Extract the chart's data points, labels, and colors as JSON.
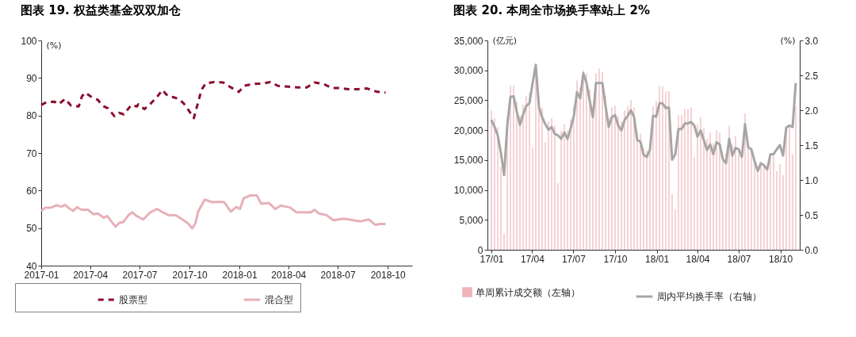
{
  "chart_data": [
    {
      "type": "line",
      "title": "图表 19. 权益类基金双双加仓",
      "ylabel": "(%)",
      "xlim": [
        "2017-01-01",
        "2018-11-15"
      ],
      "xticks": [
        "2017-01",
        "2017-04",
        "2017-07",
        "2017-10",
        "2018-01",
        "2018-04",
        "2018-07",
        "2018-10"
      ],
      "ylim": [
        40,
        100
      ],
      "yticks": [
        40,
        50,
        60,
        70,
        80,
        90,
        100
      ],
      "grid": false,
      "legend": "bottom",
      "series": [
        {
          "name": "股票型",
          "color": "#8b0d2e",
          "line_style": "dashed",
          "x": [
            "2017-01-01",
            "2017-01-10",
            "2017-01-25",
            "2017-02-02",
            "2017-02-14",
            "2017-02-25",
            "2017-03-11",
            "2017-03-17",
            "2017-03-23",
            "2017-04-02",
            "2017-04-15",
            "2017-04-24",
            "2017-05-04",
            "2017-05-16",
            "2017-05-25",
            "2017-06-02",
            "2017-06-16",
            "2017-06-26",
            "2017-06-29",
            "2017-07-10",
            "2017-07-21",
            "2017-08-01",
            "2017-08-12",
            "2017-08-22",
            "2017-09-01",
            "2017-09-11",
            "2017-09-20",
            "2017-09-29",
            "2017-10-09",
            "2017-10-16",
            "2017-10-23",
            "2017-10-31",
            "2017-11-15",
            "2017-12-02",
            "2017-12-16",
            "2017-12-31",
            "2018-01-09",
            "2018-01-26",
            "2018-02-12",
            "2018-02-27",
            "2018-03-13",
            "2018-04-01",
            "2018-04-18",
            "2018-05-05",
            "2018-05-19",
            "2018-06-05",
            "2018-06-20",
            "2018-07-04",
            "2018-07-21",
            "2018-08-07",
            "2018-08-24",
            "2018-09-12",
            "2018-09-27"
          ],
          "values": [
            82.8,
            83.5,
            83.7,
            83.0,
            84.4,
            82.6,
            82.4,
            85.1,
            86.1,
            85.1,
            84.2,
            82.6,
            81.9,
            79.8,
            80.7,
            80.3,
            82.8,
            82.4,
            83.0,
            81.7,
            83.1,
            84.7,
            86.8,
            85.2,
            84.9,
            84.4,
            83.3,
            81.5,
            79.3,
            83.0,
            86.8,
            88.6,
            88.9,
            88.8,
            87.5,
            86.3,
            87.9,
            88.4,
            88.5,
            88.9,
            87.9,
            87.7,
            87.5,
            87.5,
            88.8,
            88.4,
            87.3,
            87.3,
            87.0,
            87.0,
            87.2,
            86.3,
            86.1
          ]
        },
        {
          "name": "混合型",
          "color": "#e8b0b8",
          "line_style": "solid",
          "x": [
            "2017-01-01",
            "2017-01-08",
            "2017-01-20",
            "2017-01-29",
            "2017-02-07",
            "2017-02-14",
            "2017-02-23",
            "2017-03-01",
            "2017-03-08",
            "2017-03-16",
            "2017-03-28",
            "2017-04-07",
            "2017-04-15",
            "2017-04-26",
            "2017-05-03",
            "2017-05-11",
            "2017-05-18",
            "2017-05-25",
            "2017-06-01",
            "2017-06-11",
            "2017-06-18",
            "2017-06-26",
            "2017-07-08",
            "2017-07-20",
            "2017-08-02",
            "2017-08-13",
            "2017-08-25",
            "2017-09-06",
            "2017-09-18",
            "2017-09-28",
            "2017-10-06",
            "2017-10-12",
            "2017-10-17",
            "2017-10-29",
            "2017-11-12",
            "2017-11-25",
            "2017-12-04",
            "2017-12-16",
            "2017-12-26",
            "2018-01-02",
            "2018-01-09",
            "2018-01-21",
            "2018-02-02",
            "2018-02-10",
            "2018-02-24",
            "2018-03-08",
            "2018-03-18",
            "2018-04-04",
            "2018-04-16",
            "2018-05-13",
            "2018-05-19",
            "2018-05-27",
            "2018-06-10",
            "2018-06-23",
            "2018-07-12",
            "2018-08-12",
            "2018-08-27",
            "2018-09-08",
            "2018-09-17",
            "2018-09-27"
          ],
          "values": [
            54.6,
            55.4,
            55.5,
            56.1,
            55.7,
            56.2,
            55.1,
            54.6,
            55.6,
            54.9,
            54.9,
            53.7,
            53.9,
            52.8,
            53.2,
            51.6,
            50.4,
            51.4,
            51.6,
            53.5,
            54.2,
            53.2,
            52.3,
            54.1,
            55.1,
            54.2,
            53.4,
            53.4,
            52.3,
            51.3,
            49.9,
            51.3,
            54.4,
            57.6,
            56.9,
            57.0,
            56.9,
            54.4,
            55.6,
            55.1,
            58.0,
            58.7,
            58.7,
            56.5,
            56.7,
            55.1,
            56.0,
            55.5,
            54.2,
            54.2,
            54.9,
            53.9,
            53.5,
            52.1,
            52.5,
            51.8,
            52.3,
            50.9,
            51.1,
            51.1
          ]
        }
      ]
    },
    {
      "type": "bar",
      "title": "图表 20. 本周全市场换手率站上 2%",
      "ylabel": "(亿元)",
      "y2label": "(%)",
      "x": [
        "2017-01-06",
        "2017-01-13",
        "2017-01-20",
        "2017-01-27",
        "2017-02-03",
        "2017-02-10",
        "2017-02-17",
        "2017-02-24",
        "2017-03-03",
        "2017-03-10",
        "2017-03-17",
        "2017-03-24",
        "2017-03-31",
        "2017-04-07",
        "2017-04-14",
        "2017-04-21",
        "2017-04-28",
        "2017-05-05",
        "2017-05-12",
        "2017-05-19",
        "2017-05-26",
        "2017-06-02",
        "2017-06-09",
        "2017-06-16",
        "2017-06-23",
        "2017-06-30",
        "2017-07-07",
        "2017-07-14",
        "2017-07-21",
        "2017-07-28",
        "2017-08-04",
        "2017-08-11",
        "2017-08-18",
        "2017-08-25",
        "2017-09-01",
        "2017-09-08",
        "2017-09-15",
        "2017-09-22",
        "2017-09-29",
        "2017-10-06",
        "2017-10-13",
        "2017-10-20",
        "2017-10-27",
        "2017-11-03",
        "2017-11-10",
        "2017-11-17",
        "2017-11-24",
        "2017-12-01",
        "2017-12-08",
        "2017-12-15",
        "2017-12-22",
        "2017-12-29",
        "2018-01-05",
        "2018-01-12",
        "2018-01-19",
        "2018-01-26",
        "2018-02-02",
        "2018-02-09",
        "2018-02-16",
        "2018-02-23",
        "2018-03-02",
        "2018-03-09",
        "2018-03-16",
        "2018-03-23",
        "2018-03-30",
        "2018-04-06",
        "2018-04-13",
        "2018-04-20",
        "2018-04-27",
        "2018-05-04",
        "2018-05-11",
        "2018-05-18",
        "2018-05-25",
        "2018-06-01",
        "2018-06-08",
        "2018-06-15",
        "2018-06-22",
        "2018-06-29",
        "2018-07-06",
        "2018-07-13",
        "2018-07-20",
        "2018-07-27",
        "2018-08-03",
        "2018-08-10",
        "2018-08-17",
        "2018-08-24",
        "2018-08-31",
        "2018-09-07",
        "2018-09-14",
        "2018-09-21",
        "2018-09-28",
        "2018-10-05",
        "2018-10-12",
        "2018-10-19",
        "2018-10-26",
        "2018-11-02",
        "2018-11-09"
      ],
      "xlim": [
        "2017-01-06",
        "2018-11-09"
      ],
      "xticks": [
        {
          "value": "2017-01-06",
          "label": "17/01"
        },
        {
          "value": "2017-04-06",
          "label": "17/04"
        },
        {
          "value": "2017-07-06",
          "label": "17/07"
        },
        {
          "value": "2017-10-06",
          "label": "17/10"
        },
        {
          "value": "2018-01-06",
          "label": "18/01"
        },
        {
          "value": "2018-04-06",
          "label": "18/04"
        },
        {
          "value": "2018-07-06",
          "label": "18/07"
        },
        {
          "value": "2018-10-06",
          "label": "18/10"
        }
      ],
      "ylim": [
        0,
        35000
      ],
      "yticks": [
        0,
        {
          "value": 5000,
          "label": "5,000"
        },
        {
          "value": 10000,
          "label": "10,000"
        },
        {
          "value": 15000,
          "label": "15,000"
        },
        {
          "value": 20000,
          "label": "20,000"
        },
        {
          "value": 25000,
          "label": "25,000"
        },
        {
          "value": 30000,
          "label": "30,000"
        },
        {
          "value": 35000,
          "label": "35,000"
        }
      ],
      "y2lim": [
        0,
        3
      ],
      "y2ticks": [
        {
          "value": 0,
          "label": "0.0"
        },
        0.5,
        {
          "value": 1,
          "label": "1.0"
        },
        1.5,
        {
          "value": 2,
          "label": "2.0"
        },
        2.5,
        {
          "value": 3,
          "label": "3.0"
        }
      ],
      "grid": false,
      "legend": "bottom",
      "series": [
        {
          "name": "单周累计成交额（左轴）",
          "type": "bar",
          "color": "#efb4ba",
          "values": [
            23300,
            22000,
            20500,
            13900,
            2700,
            22300,
            27400,
            27500,
            24800,
            22400,
            24300,
            25800,
            26300,
            17100,
            29300,
            25500,
            23800,
            18000,
            21500,
            22000,
            20800,
            11100,
            19900,
            21000,
            19900,
            21800,
            24000,
            28300,
            27100,
            30000,
            29500,
            26800,
            23800,
            29500,
            30300,
            29800,
            25800,
            22000,
            23800,
            24100,
            22300,
            21400,
            23300,
            24000,
            25000,
            23800,
            19600,
            19400,
            17000,
            16600,
            17900,
            24000,
            24800,
            27300,
            27300,
            26400,
            26500,
            9300,
            6800,
            22500,
            22500,
            23500,
            23500,
            23800,
            15500,
            21000,
            22200,
            20400,
            18600,
            19600,
            17800,
            20000,
            19600,
            15000,
            16100,
            20700,
            17600,
            19000,
            16600,
            15300,
            22800,
            16900,
            16600,
            14600,
            13000,
            14300,
            13900,
            13200,
            15800,
            15800,
            13200,
            14300,
            12500,
            20100,
            20500,
            16000,
            24000
          ]
        },
        {
          "name": "周内平均换手率（右轴）",
          "type": "line",
          "axis": "y2",
          "color": "#a6a6a6",
          "values": [
            1.86,
            1.76,
            1.64,
            1.39,
            1.07,
            1.78,
            2.19,
            2.2,
            1.98,
            1.79,
            1.94,
            2.06,
            2.1,
            2.39,
            2.65,
            2.04,
            1.9,
            1.8,
            1.72,
            1.76,
            1.66,
            1.64,
            1.59,
            1.68,
            1.59,
            1.74,
            1.92,
            2.26,
            2.17,
            2.53,
            2.39,
            2.14,
            1.9,
            2.39,
            2.39,
            2.39,
            2.06,
            1.76,
            1.9,
            1.93,
            1.78,
            1.71,
            1.86,
            1.92,
            2.0,
            1.9,
            1.57,
            1.55,
            1.36,
            1.33,
            1.43,
            1.92,
            1.91,
            2.1,
            2.1,
            2.03,
            2.04,
            1.29,
            1.37,
            1.73,
            1.73,
            1.81,
            1.81,
            1.83,
            1.78,
            1.62,
            1.71,
            1.57,
            1.43,
            1.51,
            1.37,
            1.54,
            1.51,
            1.3,
            1.24,
            1.59,
            1.35,
            1.46,
            1.44,
            1.33,
            1.8,
            1.47,
            1.44,
            1.27,
            1.13,
            1.24,
            1.21,
            1.15,
            1.37,
            1.37,
            1.44,
            1.5,
            1.35,
            1.75,
            1.78,
            1.76,
            2.39
          ]
        }
      ]
    }
  ]
}
